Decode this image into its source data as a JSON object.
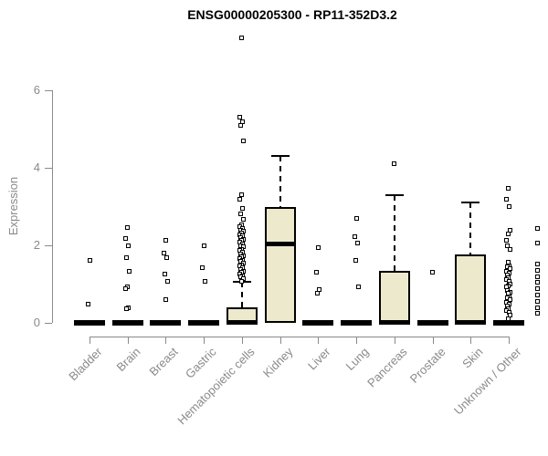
{
  "chart_data": {
    "type": "boxplot",
    "title": "ENSG00000205300 - RP11-352D3.2",
    "ylabel": "Expression",
    "xlabel": "",
    "ylim": [
      0,
      6
    ],
    "yticks": [
      0,
      2,
      4,
      6
    ],
    "grid": false,
    "colors": {
      "box_fill": "#EDE9CD",
      "line": "#000000",
      "axis": "#8A8A8A",
      "title": "#000000",
      "tick_text": "#8A8A8A"
    },
    "categories": [
      "Bladder",
      "Brain",
      "Breast",
      "Gastric",
      "Hematopoietic cells",
      "Kidney",
      "Liver",
      "Lung",
      "Pancreas",
      "Prostate",
      "Skin",
      "Unknown / Other"
    ],
    "boxes": [
      {
        "label": "Bladder",
        "collapsed": true,
        "median": 0,
        "outliers": [
          1.61,
          0.49
        ]
      },
      {
        "label": "Brain",
        "collapsed": true,
        "median": 0,
        "outliers": [
          2.47,
          2.17,
          1.98,
          1.69,
          1.34,
          0.92,
          0.88,
          0.4,
          0.37
        ]
      },
      {
        "label": "Breast",
        "collapsed": true,
        "median": 0,
        "outliers": [
          2.13,
          1.8,
          1.69,
          1.26,
          1.07,
          0.59
        ]
      },
      {
        "label": "Gastric",
        "collapsed": true,
        "median": 0,
        "outliers": [
          1.98,
          1.43,
          1.08
        ]
      },
      {
        "label": "Hematopoietic cells",
        "q1": 0,
        "median": 0.03,
        "q3": 0.4,
        "whisker_high": 1.05,
        "outliers": [
          7.35,
          5.3,
          5.19,
          5.09,
          4.69,
          3.3,
          3.18,
          2.95,
          2.81,
          2.68,
          2.52,
          2.48,
          2.44,
          2.4,
          2.36,
          2.32,
          2.28,
          2.24,
          2.2,
          2.16,
          2.12,
          2.08,
          2.04,
          2.0,
          1.97,
          1.9,
          1.86,
          1.82,
          1.78,
          1.74,
          1.7,
          1.66,
          1.62,
          1.58,
          1.54,
          1.5,
          1.46,
          1.42,
          1.38,
          1.34,
          1.3,
          1.26,
          1.22,
          1.18,
          1.14,
          1.08
        ]
      },
      {
        "label": "Kidney",
        "q1": 0,
        "median": 2.05,
        "q3": 3.0,
        "whisker_high": 4.3,
        "outliers": []
      },
      {
        "label": "Liver",
        "collapsed": true,
        "median": 0,
        "outliers": [
          1.93,
          1.31,
          0.86,
          0.76
        ]
      },
      {
        "label": "Lung",
        "collapsed": true,
        "median": 0,
        "outliers": [
          2.69,
          2.23,
          2.06,
          1.61,
          0.92
        ]
      },
      {
        "label": "Pancreas",
        "q1": 0,
        "median": 0.03,
        "q3": 1.35,
        "whisker_high": 3.3,
        "outliers": [
          4.1
        ]
      },
      {
        "label": "Prostate",
        "collapsed": true,
        "median": 0,
        "outliers": [
          1.3
        ]
      },
      {
        "label": "Skin",
        "q1": 0,
        "median": 0.03,
        "q3": 1.77,
        "whisker_high": 3.1,
        "outliers": []
      },
      {
        "label": "Unknown / Other",
        "collapsed": true,
        "median": 0,
        "wide_jitter": true,
        "outliers": [
          3.47,
          3.19,
          2.99,
          2.44,
          2.38,
          2.3,
          2.13,
          2.05,
          1.98,
          1.9,
          1.56,
          1.52,
          1.48,
          1.44,
          1.4,
          1.36,
          1.32,
          1.28,
          1.24,
          1.2,
          1.16,
          1.12,
          1.08,
          1.04,
          1.0,
          0.96,
          0.92,
          0.88,
          0.84,
          0.8,
          0.76,
          0.72,
          0.68,
          0.64,
          0.6,
          0.56,
          0.52,
          0.48,
          0.44,
          0.4,
          0.36,
          0.32,
          0.28,
          0.24,
          0.2,
          0.1
        ]
      }
    ]
  }
}
